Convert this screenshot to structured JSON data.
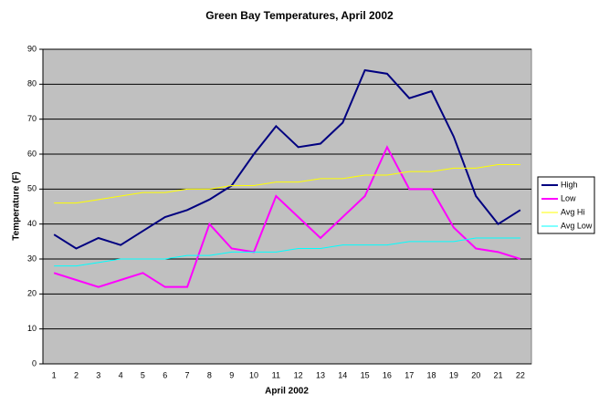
{
  "chart_data": {
    "type": "line",
    "title": "Green Bay Temperatures, April 2002",
    "x_label": "April 2002",
    "y_label": "Temperature (F)",
    "categories": [
      "1",
      "2",
      "3",
      "4",
      "5",
      "6",
      "7",
      "8",
      "9",
      "10",
      "11",
      "12",
      "13",
      "14",
      "15",
      "16",
      "17",
      "18",
      "19",
      "20",
      "21",
      "22"
    ],
    "series": [
      {
        "name": "High",
        "color": "#000080",
        "values": [
          37,
          33,
          36,
          34,
          38,
          42,
          44,
          47,
          51,
          60,
          68,
          62,
          63,
          69,
          84,
          83,
          76,
          78,
          65,
          48,
          40,
          44
        ]
      },
      {
        "name": "Low",
        "color": "#ff00ff",
        "values": [
          26,
          24,
          22,
          24,
          26,
          22,
          22,
          40,
          33,
          32,
          48,
          42,
          36,
          42,
          48,
          62,
          50,
          50,
          39,
          33,
          32,
          30
        ]
      },
      {
        "name": "Avg Hi",
        "color": "#ffff00",
        "values": [
          46,
          46,
          47,
          48,
          49,
          49,
          50,
          50,
          51,
          51,
          52,
          52,
          53,
          53,
          54,
          54,
          55,
          55,
          56,
          56,
          57,
          57
        ]
      },
      {
        "name": "Avg Low",
        "color": "#00ffff",
        "values": [
          28,
          28,
          29,
          30,
          30,
          30,
          31,
          31,
          32,
          32,
          32,
          33,
          33,
          34,
          34,
          34,
          35,
          35,
          35,
          36,
          36,
          36
        ]
      }
    ],
    "ylim": [
      0,
      90
    ],
    "yticks": [
      0,
      10,
      20,
      30,
      40,
      50,
      60,
      70,
      80,
      90
    ],
    "grid": true,
    "legend": "right"
  }
}
